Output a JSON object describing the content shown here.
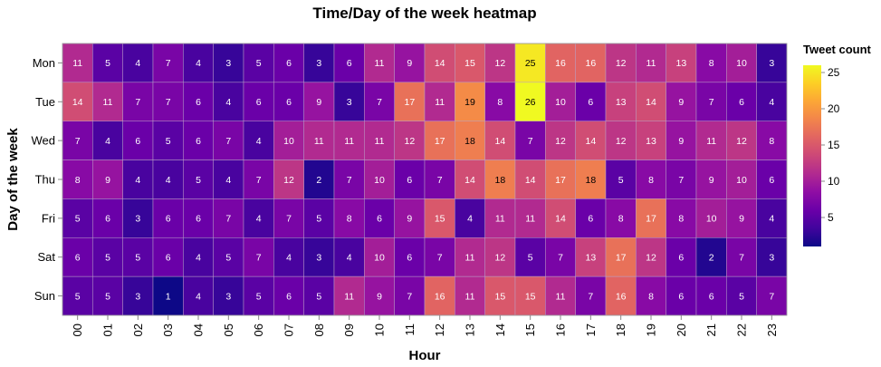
{
  "chart_data": {
    "type": "heatmap",
    "title": "Time/Day of the week heatmap",
    "xlabel": "Hour",
    "ylabel": "Day of the week",
    "x_categories": [
      "00",
      "01",
      "02",
      "03",
      "04",
      "05",
      "06",
      "07",
      "08",
      "09",
      "10",
      "11",
      "12",
      "13",
      "14",
      "15",
      "16",
      "17",
      "18",
      "19",
      "20",
      "21",
      "22",
      "23"
    ],
    "y_categories": [
      "Mon",
      "Tue",
      "Wed",
      "Thu",
      "Fri",
      "Sat",
      "Sun"
    ],
    "values": [
      [
        11,
        5,
        4,
        7,
        4,
        3,
        5,
        6,
        3,
        6,
        11,
        9,
        14,
        15,
        12,
        25,
        16,
        16,
        12,
        11,
        13,
        8,
        10,
        3
      ],
      [
        14,
        11,
        7,
        7,
        6,
        4,
        6,
        6,
        9,
        3,
        7,
        17,
        11,
        19,
        8,
        26,
        10,
        6,
        13,
        14,
        9,
        7,
        6,
        4
      ],
      [
        7,
        4,
        6,
        5,
        6,
        7,
        4,
        10,
        11,
        11,
        11,
        12,
        17,
        18,
        14,
        7,
        12,
        14,
        12,
        13,
        9,
        11,
        12,
        8
      ],
      [
        8,
        9,
        4,
        4,
        5,
        4,
        7,
        12,
        2,
        7,
        10,
        6,
        7,
        14,
        18,
        14,
        17,
        18,
        5,
        8,
        7,
        9,
        10,
        6
      ],
      [
        5,
        6,
        3,
        6,
        6,
        7,
        4,
        7,
        5,
        8,
        6,
        9,
        15,
        4,
        11,
        11,
        14,
        6,
        8,
        17,
        8,
        10,
        9,
        4
      ],
      [
        6,
        5,
        5,
        6,
        4,
        5,
        7,
        4,
        3,
        4,
        10,
        6,
        7,
        11,
        12,
        5,
        7,
        13,
        17,
        12,
        6,
        2,
        7,
        3
      ],
      [
        5,
        5,
        3,
        1,
        4,
        3,
        5,
        6,
        5,
        11,
        9,
        7,
        16,
        11,
        15,
        15,
        11,
        7,
        16,
        8,
        6,
        6,
        5,
        7
      ]
    ],
    "color_scale": "plasma",
    "color_domain": [
      1,
      26
    ],
    "legend": {
      "title": "Tweet count",
      "ticks": [
        "25",
        "20",
        "15",
        "10",
        "5"
      ],
      "placement": "right"
    },
    "grid": false
  }
}
